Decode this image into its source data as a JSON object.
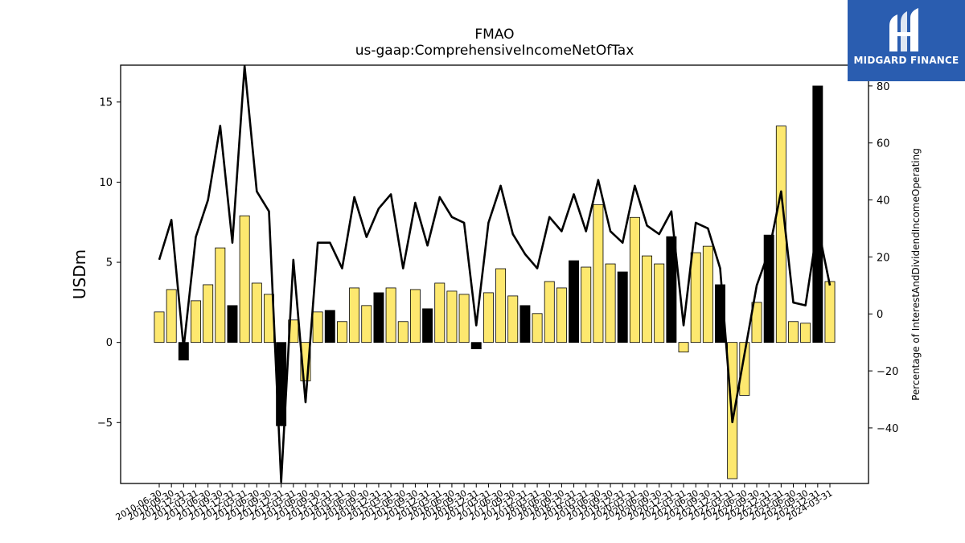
{
  "chart_data": {
    "type": "bar",
    "title": "FMAO",
    "subtitle": "us-gaap:ComprehensiveIncomeNetOfTax",
    "ylabel": "USDm",
    "y2label": "Percentage of InterestAndDividendIncomeOperating",
    "ylim": [
      -8.8,
      17.3
    ],
    "y2lim": [
      -59.5,
      87.3
    ],
    "yticks": [
      -5,
      0,
      5,
      10,
      15
    ],
    "y2ticks": [
      -40,
      -20,
      0,
      20,
      40,
      60,
      80
    ],
    "ytick_labels": [
      "−5",
      "0",
      "5",
      "10",
      "15"
    ],
    "y2tick_labels": [
      "−40",
      "−20",
      "0",
      "20",
      "40",
      "60",
      "80"
    ],
    "bar_color_default": "#fde86f",
    "bar_color_highlight": "#000000",
    "line_color": "#000000",
    "categories": [
      "2010-06-30",
      "2010-09-30",
      "2010-12-31",
      "2011-03-31",
      "2011-06-30",
      "2011-09-30",
      "2011-12-31",
      "2012-03-31",
      "2012-06-30",
      "2012-09-30",
      "2012-12-31",
      "2013-03-31",
      "2013-06-30",
      "2013-09-30",
      "2013-12-31",
      "2014-03-31",
      "2014-06-30",
      "2014-09-30",
      "2014-12-31",
      "2015-03-31",
      "2015-06-30",
      "2015-09-30",
      "2015-12-31",
      "2016-03-31",
      "2016-06-30",
      "2016-09-30",
      "2016-12-31",
      "2017-03-31",
      "2017-06-30",
      "2017-09-30",
      "2017-12-31",
      "2018-03-31",
      "2018-06-30",
      "2018-09-30",
      "2018-12-31",
      "2019-03-31",
      "2019-06-30",
      "2019-09-30",
      "2019-12-31",
      "2020-03-31",
      "2020-06-30",
      "2020-09-30",
      "2020-12-31",
      "2021-03-31",
      "2021-06-30",
      "2021-09-30",
      "2021-12-31",
      "2022-03-31",
      "2022-06-30",
      "2022-09-30",
      "2022-12-31",
      "2023-03-31",
      "2023-06-30",
      "2023-09-30",
      "2023-12-31",
      "2024-03-31"
    ],
    "series": [
      {
        "values": [
          1.9,
          3.3,
          -1.1,
          2.6,
          3.6,
          5.9,
          2.3,
          7.9,
          3.7,
          3.0,
          -5.2,
          1.4,
          -2.4,
          1.9,
          2.0,
          1.3,
          3.4,
          2.3,
          3.1,
          3.4,
          1.3,
          3.3,
          2.1,
          3.7,
          3.2,
          3.0,
          -0.4,
          3.1,
          4.6,
          2.9,
          2.3,
          1.8,
          3.8,
          3.4,
          5.1,
          4.7,
          8.6,
          4.9,
          4.4,
          7.8,
          5.4,
          4.9,
          6.6,
          -0.6,
          5.6,
          6.0,
          3.6,
          -8.5,
          -3.3,
          2.5,
          6.7,
          13.5,
          1.3,
          1.2,
          16.0,
          3.8
        ],
        "highlight": [
          false,
          false,
          true,
          false,
          false,
          false,
          true,
          false,
          false,
          false,
          true,
          false,
          false,
          false,
          true,
          false,
          false,
          false,
          true,
          false,
          false,
          false,
          true,
          false,
          false,
          false,
          true,
          false,
          false,
          false,
          true,
          false,
          false,
          false,
          true,
          false,
          false,
          false,
          true,
          false,
          false,
          false,
          true,
          false,
          false,
          false,
          true,
          false,
          false,
          false,
          true,
          false,
          false,
          false,
          true,
          false
        ]
      },
      {
        "axis": "right",
        "type": "line",
        "values": [
          19,
          33,
          -12,
          27,
          40,
          66,
          25,
          87,
          43,
          36,
          -59,
          19,
          -31,
          25,
          25,
          16,
          41,
          27,
          37,
          42,
          16,
          39,
          24,
          41,
          34,
          32,
          -4,
          32,
          45,
          28,
          21,
          16,
          34,
          29,
          42,
          29,
          47,
          29,
          25,
          45,
          31,
          28,
          36,
          -4,
          32,
          30,
          16,
          -38,
          -14,
          10,
          22,
          43,
          4,
          3,
          31,
          10
        ]
      }
    ]
  },
  "logo": {
    "text": "MIDGARD FINANCE"
  }
}
